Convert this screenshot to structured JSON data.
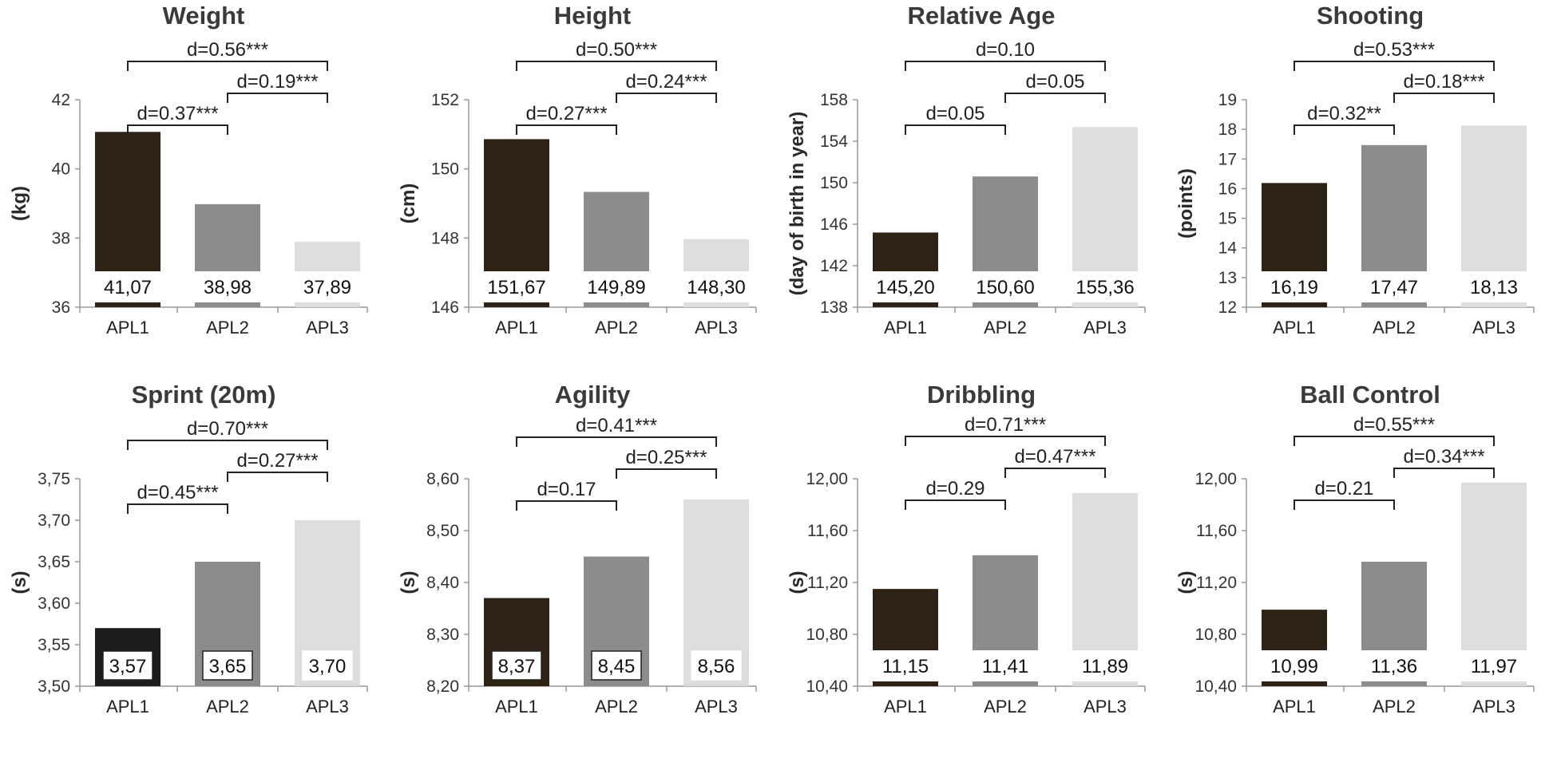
{
  "chart_data": [
    {
      "type": "bar",
      "title": "Weight",
      "xlabel": "",
      "ylabel": "(kg)",
      "ylim": [
        36,
        42
      ],
      "yticks": [
        "36",
        "38",
        "40",
        "42"
      ],
      "categories": [
        "APL1",
        "APL2",
        "APL3"
      ],
      "values": [
        41.07,
        38.98,
        37.89
      ],
      "value_labels": [
        "41,07",
        "38,98",
        "37,89"
      ],
      "label_style": "plain",
      "comparisons": [
        {
          "from": "APL1",
          "to": "APL3",
          "label": "d=0.56***"
        },
        {
          "from": "APL1",
          "to": "APL2",
          "label": "d=0.37***"
        },
        {
          "from": "APL2",
          "to": "APL3",
          "label": "d=0.19***"
        }
      ]
    },
    {
      "type": "bar",
      "title": "Height",
      "xlabel": "",
      "ylabel": "(cm)",
      "ylim": [
        146,
        153
      ],
      "yticks": [
        "146",
        "148",
        "150",
        "152"
      ],
      "categories": [
        "APL1",
        "APL2",
        "APL3"
      ],
      "values": [
        151.67,
        149.89,
        148.3
      ],
      "value_labels": [
        "151,67",
        "149,89",
        "148,30"
      ],
      "label_style": "plain",
      "comparisons": [
        {
          "from": "APL1",
          "to": "APL3",
          "label": "d=0.50***"
        },
        {
          "from": "APL1",
          "to": "APL2",
          "label": "d=0.27***"
        },
        {
          "from": "APL2",
          "to": "APL3",
          "label": "d=0.24***"
        }
      ]
    },
    {
      "type": "bar",
      "title": "Relative Age",
      "xlabel": "",
      "ylabel": "(day of birth in year)",
      "ylim": [
        138,
        158
      ],
      "yticks": [
        "138",
        "142",
        "146",
        "150",
        "154",
        "158"
      ],
      "categories": [
        "APL1",
        "APL2",
        "APL3"
      ],
      "values": [
        145.2,
        150.6,
        155.36
      ],
      "value_labels": [
        "145,20",
        "150,60",
        "155,36"
      ],
      "label_style": "plain",
      "comparisons": [
        {
          "from": "APL1",
          "to": "APL3",
          "label": "d=0.10"
        },
        {
          "from": "APL1",
          "to": "APL2",
          "label": "d=0.05"
        },
        {
          "from": "APL2",
          "to": "APL3",
          "label": "d=0.05"
        }
      ]
    },
    {
      "type": "bar",
      "title": "Shooting",
      "xlabel": "",
      "ylabel": "(points)",
      "ylim": [
        12,
        19
      ],
      "yticks": [
        "12",
        "13",
        "14",
        "15",
        "16",
        "17",
        "18",
        "19"
      ],
      "categories": [
        "APL1",
        "APL2",
        "APL3"
      ],
      "values": [
        16.19,
        17.47,
        18.13
      ],
      "value_labels": [
        "16,19",
        "17,47",
        "18,13"
      ],
      "label_style": "plain",
      "comparisons": [
        {
          "from": "APL1",
          "to": "APL3",
          "label": "d=0.53***"
        },
        {
          "from": "APL1",
          "to": "APL2",
          "label": "d=0.32**"
        },
        {
          "from": "APL2",
          "to": "APL3",
          "label": "d=0.18***"
        }
      ]
    },
    {
      "type": "bar",
      "title": "Sprint (20m)",
      "xlabel": "",
      "ylabel": "(s)",
      "ylim": [
        3.5,
        3.75
      ],
      "yticks": [
        "3,50",
        "3,55",
        "3,60",
        "3,65",
        "3,70",
        "3,75"
      ],
      "categories": [
        "APL1",
        "APL2",
        "APL3"
      ],
      "values": [
        3.57,
        3.65,
        3.7
      ],
      "value_labels": [
        "3,57",
        "3,65",
        "3,70"
      ],
      "label_style": "boxed",
      "comparisons": [
        {
          "from": "APL1",
          "to": "APL3",
          "label": "d=0.70***"
        },
        {
          "from": "APL1",
          "to": "APL2",
          "label": "d=0.45***"
        },
        {
          "from": "APL2",
          "to": "APL3",
          "label": "d=0.27***"
        }
      ]
    },
    {
      "type": "bar",
      "title": "Agility",
      "xlabel": "",
      "ylabel": "(s)",
      "ylim": [
        8.2,
        8.6
      ],
      "yticks": [
        "8,20",
        "8,30",
        "8,40",
        "8,50",
        "8,60"
      ],
      "categories": [
        "APL1",
        "APL2",
        "APL3"
      ],
      "values": [
        8.37,
        8.45,
        8.56
      ],
      "value_labels": [
        "8,37",
        "8,45",
        "8,56"
      ],
      "label_style": "boxed",
      "comparisons": [
        {
          "from": "APL1",
          "to": "APL3",
          "label": "d=0.41***"
        },
        {
          "from": "APL1",
          "to": "APL2",
          "label": "d=0.17"
        },
        {
          "from": "APL2",
          "to": "APL3",
          "label": "d=0.25***"
        }
      ]
    },
    {
      "type": "bar",
      "title": "Dribbling",
      "xlabel": "",
      "ylabel": "(s)",
      "ylim": [
        10.4,
        12.0
      ],
      "yticks": [
        "10,40",
        "10,80",
        "11,20",
        "11,60",
        "12,00"
      ],
      "categories": [
        "APL1",
        "APL2",
        "APL3"
      ],
      "values": [
        11.15,
        11.41,
        11.89
      ],
      "value_labels": [
        "11,15",
        "11,41",
        "11,89"
      ],
      "label_style": "plain",
      "comparisons": [
        {
          "from": "APL1",
          "to": "APL3",
          "label": "d=0.71***"
        },
        {
          "from": "APL1",
          "to": "APL2",
          "label": "d=0.29"
        },
        {
          "from": "APL2",
          "to": "APL3",
          "label": "d=0.47***"
        }
      ]
    },
    {
      "type": "bar",
      "title": "Ball Control",
      "xlabel": "",
      "ylabel": "(s)",
      "ylim": [
        10.4,
        12.0
      ],
      "yticks": [
        "10,40",
        "10,80",
        "11,20",
        "11,60",
        "12,00"
      ],
      "categories": [
        "APL1",
        "APL2",
        "APL3"
      ],
      "values": [
        10.99,
        11.36,
        11.97
      ],
      "value_labels": [
        "10,99",
        "11,36",
        "11,97"
      ],
      "label_style": "plain",
      "comparisons": [
        {
          "from": "APL1",
          "to": "APL3",
          "label": "d=0.55***"
        },
        {
          "from": "APL1",
          "to": "APL2",
          "label": "d=0.21"
        },
        {
          "from": "APL2",
          "to": "APL3",
          "label": "d=0.34***"
        }
      ]
    }
  ],
  "colors": {
    "APL1": "#2e2116",
    "APL1_sprint": "#1c1c1c",
    "APL2": "#8c8c8c",
    "APL3": "#dddddd",
    "axis": "#999999",
    "bracket": "#222222"
  }
}
